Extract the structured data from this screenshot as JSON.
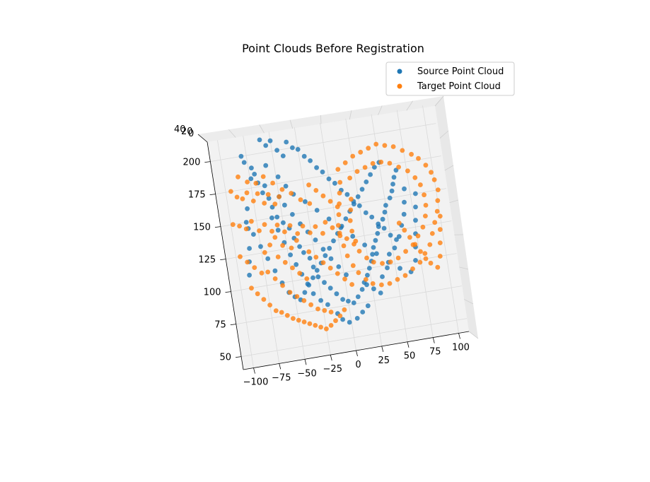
{
  "chart_data": {
    "type": "scatter",
    "title": "Point Clouds Before Registration",
    "xlabel": "",
    "ylabel": "",
    "zlabel": "",
    "projection": "3d",
    "grid": true,
    "legend_position": "top-right",
    "xlim": [
      -110,
      110
    ],
    "ylim": [
      40,
      215
    ],
    "x_ticks": [
      "−100",
      "−75",
      "−50",
      "−25",
      "0",
      "25",
      "50",
      "75",
      "100"
    ],
    "y_ticks": [
      "50",
      "75",
      "100",
      "125",
      "150",
      "175",
      "200"
    ],
    "z_ticks": [
      "40",
      "20",
      "0"
    ],
    "series": [
      {
        "name": "Source Point Cloud",
        "color": "#1f77b4",
        "points": [
          [
            -80,
            200
          ],
          [
            -78,
            195
          ],
          [
            -72,
            190
          ],
          [
            -74,
            182
          ],
          [
            -68,
            178
          ],
          [
            -65,
            170
          ],
          [
            -60,
            165
          ],
          [
            -58,
            158
          ],
          [
            -55,
            150
          ],
          [
            -50,
            145
          ],
          [
            -45,
            140
          ],
          [
            -42,
            132
          ],
          [
            -38,
            125
          ],
          [
            -35,
            120
          ],
          [
            -30,
            115
          ],
          [
            -28,
            108
          ],
          [
            -25,
            100
          ],
          [
            -20,
            95
          ],
          [
            -15,
            90
          ],
          [
            -10,
            85
          ],
          [
            -5,
            80
          ],
          [
            0,
            78
          ],
          [
            5,
            76
          ],
          [
            10,
            80
          ],
          [
            15,
            85
          ],
          [
            18,
            90
          ],
          [
            22,
            95
          ],
          [
            25,
            100
          ],
          [
            28,
            105
          ],
          [
            30,
            110
          ],
          [
            32,
            115
          ],
          [
            35,
            120
          ],
          [
            38,
            125
          ],
          [
            40,
            130
          ],
          [
            45,
            135
          ],
          [
            48,
            140
          ],
          [
            50,
            145
          ],
          [
            55,
            150
          ],
          [
            58,
            155
          ],
          [
            60,
            160
          ],
          [
            62,
            165
          ],
          [
            65,
            170
          ],
          [
            -60,
            210
          ],
          [
            -55,
            205
          ],
          [
            -50,
            208
          ],
          [
            -45,
            200
          ],
          [
            -40,
            195
          ],
          [
            -35,
            205
          ],
          [
            -30,
            200
          ],
          [
            -25,
            198
          ],
          [
            -20,
            192
          ],
          [
            -15,
            188
          ],
          [
            -10,
            182
          ],
          [
            -5,
            178
          ],
          [
            0,
            172
          ],
          [
            5,
            168
          ],
          [
            10,
            162
          ],
          [
            15,
            158
          ],
          [
            20,
            152
          ],
          [
            25,
            148
          ],
          [
            30,
            142
          ],
          [
            35,
            138
          ],
          [
            40,
            132
          ],
          [
            45,
            128
          ],
          [
            50,
            122
          ],
          [
            55,
            118
          ],
          [
            -85,
            150
          ],
          [
            -80,
            140
          ],
          [
            -75,
            130
          ],
          [
            -70,
            120
          ],
          [
            -65,
            110
          ],
          [
            -60,
            100
          ],
          [
            -55,
            92
          ],
          [
            -50,
            88
          ],
          [
            -45,
            85
          ],
          [
            -40,
            90
          ],
          [
            -35,
            95
          ],
          [
            -30,
            100
          ],
          [
            -25,
            105
          ],
          [
            -20,
            110
          ],
          [
            -15,
            115
          ],
          [
            -10,
            120
          ],
          [
            -5,
            125
          ],
          [
            0,
            130
          ],
          [
            5,
            135
          ],
          [
            10,
            140
          ],
          [
            15,
            145
          ],
          [
            20,
            150
          ],
          [
            25,
            155
          ],
          [
            30,
            160
          ],
          [
            35,
            165
          ],
          [
            40,
            170
          ],
          [
            45,
            175
          ],
          [
            50,
            178
          ],
          [
            -90,
            110
          ],
          [
            -88,
            120
          ],
          [
            -86,
            130
          ],
          [
            -84,
            145
          ],
          [
            -82,
            160
          ],
          [
            -70,
            185
          ],
          [
            -62,
            175
          ],
          [
            -58,
            190
          ],
          [
            -48,
            180
          ],
          [
            -42,
            172
          ],
          [
            -36,
            165
          ],
          [
            -26,
            158
          ],
          [
            -16,
            150
          ],
          [
            -6,
            142
          ],
          [
            4,
            134
          ],
          [
            14,
            126
          ],
          [
            24,
            118
          ],
          [
            34,
            110
          ],
          [
            44,
            102
          ],
          [
            54,
            96
          ],
          [
            64,
            92
          ],
          [
            70,
            100
          ],
          [
            72,
            110
          ],
          [
            74,
            120
          ],
          [
            76,
            130
          ],
          [
            78,
            140
          ],
          [
            80,
            150
          ],
          [
            20,
            88
          ],
          [
            26,
            84
          ],
          [
            32,
            80
          ],
          [
            36,
            92
          ],
          [
            42,
            98
          ],
          [
            46,
            108
          ],
          [
            52,
            112
          ],
          [
            58,
            120
          ],
          [
            62,
            128
          ],
          [
            66,
            136
          ],
          [
            68,
            145
          ],
          [
            70,
            155
          ],
          [
            -12,
            70
          ],
          [
            -8,
            65
          ],
          [
            -2,
            62
          ],
          [
            6,
            64
          ],
          [
            12,
            68
          ],
          [
            18,
            72
          ],
          [
            -60,
            150
          ],
          [
            -56,
            140
          ],
          [
            -52,
            130
          ],
          [
            -48,
            120
          ],
          [
            -44,
            112
          ],
          [
            -40,
            104
          ],
          [
            -36,
            96
          ],
          [
            -32,
            88
          ],
          [
            -26,
            82
          ],
          [
            -20,
            78
          ],
          [
            -50,
            165
          ],
          [
            -46,
            158
          ],
          [
            -40,
            150
          ],
          [
            -34,
            142
          ],
          [
            -28,
            135
          ],
          [
            -22,
            128
          ],
          [
            -16,
            120
          ],
          [
            -10,
            112
          ],
          [
            -4,
            105
          ],
          [
            2,
            98
          ]
        ]
      },
      {
        "name": "Target Point Cloud",
        "color": "#ff7f0e",
        "points": [
          [
            -95,
            175
          ],
          [
            -90,
            170
          ],
          [
            -85,
            168
          ],
          [
            -80,
            172
          ],
          [
            -75,
            165
          ],
          [
            -70,
            170
          ],
          [
            -65,
            162
          ],
          [
            -60,
            168
          ],
          [
            -55,
            160
          ],
          [
            -50,
            165
          ],
          [
            -98,
            150
          ],
          [
            -92,
            148
          ],
          [
            -86,
            145
          ],
          [
            -80,
            150
          ],
          [
            -74,
            142
          ],
          [
            -68,
            146
          ],
          [
            -62,
            140
          ],
          [
            -56,
            144
          ],
          [
            -50,
            138
          ],
          [
            -44,
            142
          ],
          [
            -38,
            135
          ],
          [
            -32,
            140
          ],
          [
            -26,
            134
          ],
          [
            -20,
            138
          ],
          [
            -14,
            132
          ],
          [
            -90,
            100
          ],
          [
            -85,
            95
          ],
          [
            -80,
            90
          ],
          [
            -75,
            85
          ],
          [
            -70,
            80
          ],
          [
            -65,
            78
          ],
          [
            -60,
            75
          ],
          [
            -55,
            72
          ],
          [
            -50,
            70
          ],
          [
            -45,
            68
          ],
          [
            -40,
            66
          ],
          [
            -35,
            64
          ],
          [
            -30,
            62
          ],
          [
            -25,
            60
          ],
          [
            -20,
            62
          ],
          [
            -15,
            65
          ],
          [
            -10,
            68
          ],
          [
            -5,
            72
          ],
          [
            -72,
            110
          ],
          [
            -66,
            104
          ],
          [
            -60,
            98
          ],
          [
            -54,
            92
          ],
          [
            -48,
            88
          ],
          [
            -42,
            84
          ],
          [
            -36,
            80
          ],
          [
            -30,
            76
          ],
          [
            -24,
            74
          ],
          [
            -18,
            72
          ],
          [
            10,
            178
          ],
          [
            18,
            182
          ],
          [
            26,
            186
          ],
          [
            34,
            188
          ],
          [
            42,
            190
          ],
          [
            50,
            192
          ],
          [
            58,
            190
          ],
          [
            66,
            188
          ],
          [
            74,
            184
          ],
          [
            82,
            180
          ],
          [
            88,
            176
          ],
          [
            94,
            170
          ],
          [
            98,
            164
          ],
          [
            100,
            158
          ],
          [
            102,
            150
          ],
          [
            100,
            142
          ],
          [
            98,
            134
          ],
          [
            94,
            126
          ],
          [
            90,
            118
          ],
          [
            86,
            110
          ],
          [
            80,
            104
          ],
          [
            74,
            98
          ],
          [
            66,
            94
          ],
          [
            58,
            90
          ],
          [
            50,
            88
          ],
          [
            42,
            86
          ],
          [
            34,
            86
          ],
          [
            26,
            88
          ],
          [
            20,
            92
          ],
          [
            14,
            98
          ],
          [
            10,
            104
          ],
          [
            6,
            112
          ],
          [
            4,
            120
          ],
          [
            2,
            128
          ],
          [
            2,
            136
          ],
          [
            4,
            144
          ],
          [
            6,
            152
          ],
          [
            8,
            160
          ],
          [
            10,
            168
          ],
          [
            20,
            170
          ],
          [
            28,
            174
          ],
          [
            36,
            176
          ],
          [
            44,
            178
          ],
          [
            52,
            178
          ],
          [
            60,
            176
          ],
          [
            68,
            172
          ],
          [
            76,
            168
          ],
          [
            82,
            162
          ],
          [
            86,
            156
          ],
          [
            88,
            148
          ],
          [
            88,
            140
          ],
          [
            86,
            132
          ],
          [
            82,
            124
          ],
          [
            76,
            118
          ],
          [
            70,
            112
          ],
          [
            62,
            108
          ],
          [
            54,
            104
          ],
          [
            46,
            102
          ],
          [
            38,
            102
          ],
          [
            30,
            104
          ],
          [
            24,
            108
          ],
          [
            18,
            114
          ],
          [
            16,
            122
          ],
          [
            14,
            130
          ],
          [
            14,
            138
          ],
          [
            16,
            146
          ],
          [
            18,
            154
          ],
          [
            -20,
            170
          ],
          [
            -14,
            165
          ],
          [
            -8,
            160
          ],
          [
            -2,
            155
          ],
          [
            4,
            150
          ],
          [
            -30,
            120
          ],
          [
            -24,
            115
          ],
          [
            -18,
            110
          ],
          [
            -12,
            105
          ],
          [
            -6,
            100
          ],
          [
            0,
            95
          ],
          [
            6,
            90
          ],
          [
            -10,
            140
          ],
          [
            -4,
            135
          ],
          [
            2,
            130
          ],
          [
            8,
            125
          ],
          [
            14,
            120
          ],
          [
            -60,
            120
          ],
          [
            -54,
            115
          ],
          [
            -48,
            110
          ],
          [
            -42,
            105
          ],
          [
            -36,
            100
          ],
          [
            -96,
            125
          ],
          [
            -90,
            120
          ],
          [
            -84,
            115
          ],
          [
            -78,
            110
          ],
          [
            -72,
            125
          ],
          [
            -66,
            130
          ],
          [
            -60,
            135
          ],
          [
            -54,
            128
          ],
          [
            -46,
            125
          ],
          [
            -40,
            130
          ],
          [
            60,
            130
          ],
          [
            64,
            124
          ],
          [
            68,
            118
          ],
          [
            72,
            112
          ],
          [
            76,
            106
          ],
          [
            80,
            100
          ],
          [
            84,
            96
          ],
          [
            90,
            92
          ],
          [
            94,
            100
          ],
          [
            96,
            110
          ],
          [
            98,
            120
          ],
          [
            100,
            130
          ],
          [
            -86,
            185
          ],
          [
            -78,
            180
          ],
          [
            -70,
            178
          ],
          [
            -62,
            182
          ],
          [
            -54,
            176
          ],
          [
            -46,
            170
          ],
          [
            -38,
            166
          ],
          [
            -30,
            160
          ],
          [
            -22,
            156
          ]
        ]
      }
    ]
  }
}
